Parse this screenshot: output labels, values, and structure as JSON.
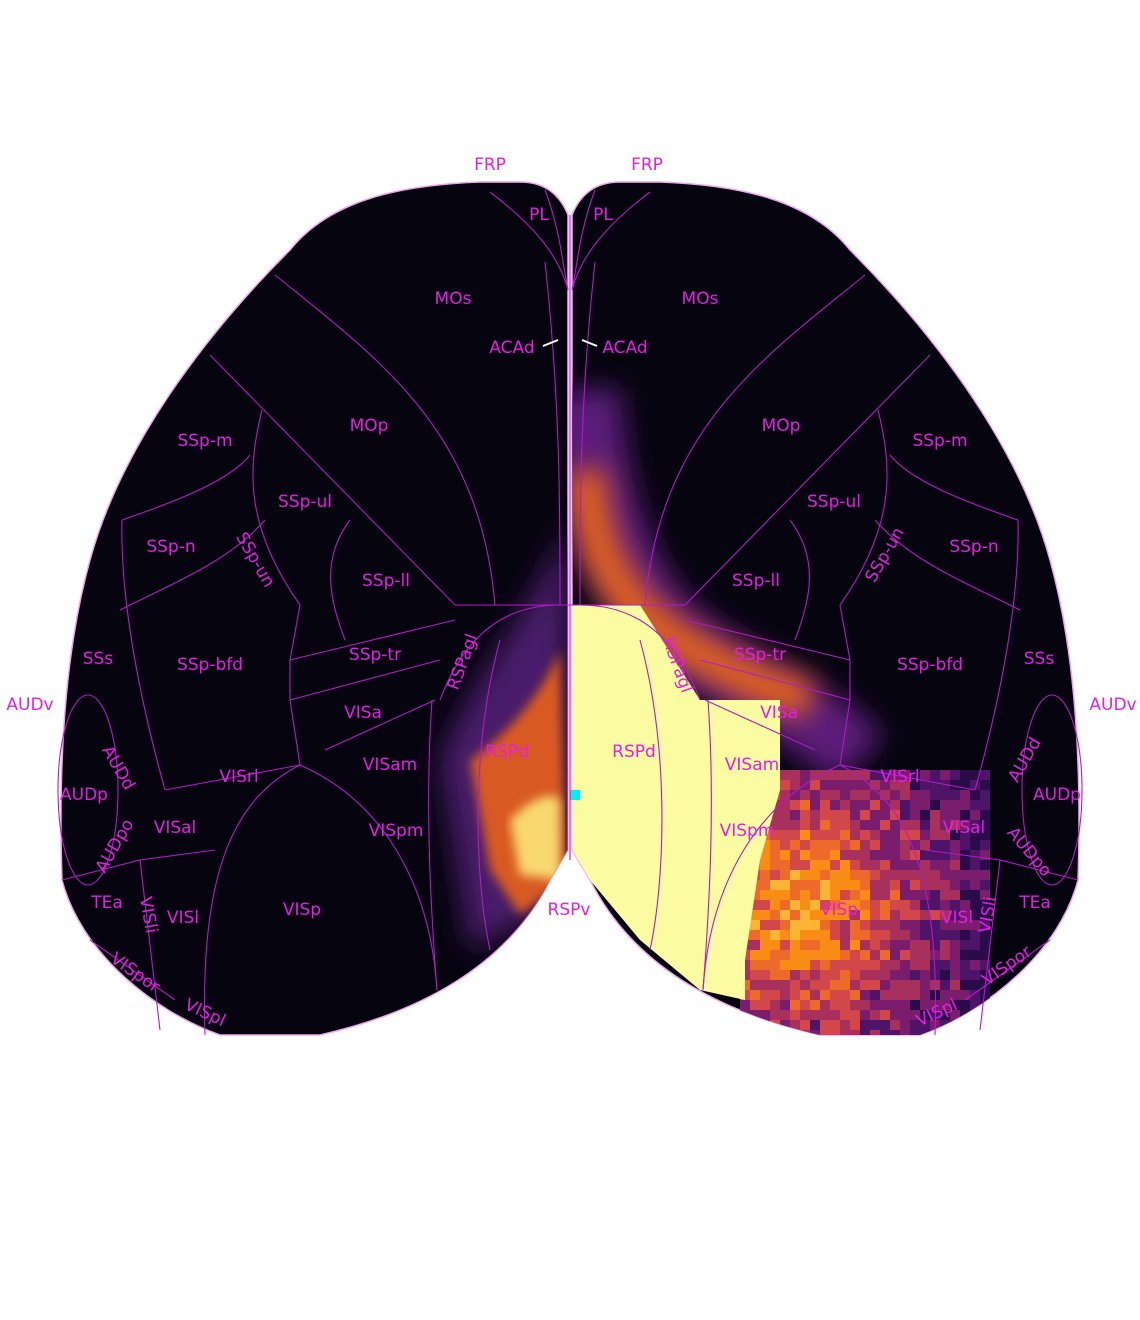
{
  "left_hemisphere": {
    "labels": [
      "FRP",
      "PL",
      "MOs",
      "ACAd",
      "MOp",
      "SSp-m",
      "SSp-ul",
      "SSp-n",
      "SSp-un",
      "SSp-ll",
      "SSs",
      "SSp-bfd",
      "SSp-tr",
      "RSPagl",
      "VISa",
      "AUDv",
      "AUDd",
      "RSPd",
      "VISam",
      "AUDp",
      "VISrl",
      "VISal",
      "VISpm",
      "AUDpo",
      "TEa",
      "VISli",
      "VISl",
      "VISp",
      "VISpor",
      "VISpl"
    ]
  },
  "midline": {
    "label": "RSPv"
  },
  "right_hemisphere": {
    "labels": [
      "FRP",
      "PL",
      "MOs",
      "ACAd",
      "MOp",
      "SSp-m",
      "SSp-ul",
      "SSp-n",
      "SSp-un",
      "SSp-ll",
      "SSs",
      "SSp-bfd",
      "SSp-tr",
      "RSPagl",
      "VISa",
      "AUDv",
      "AUDd",
      "RSPd",
      "VISam",
      "AUDp",
      "VISrl",
      "VISal",
      "VISpm",
      "AUDpo",
      "TEa",
      "VISli",
      "VISl",
      "VISp",
      "VISpor",
      "VISpl"
    ]
  }
}
